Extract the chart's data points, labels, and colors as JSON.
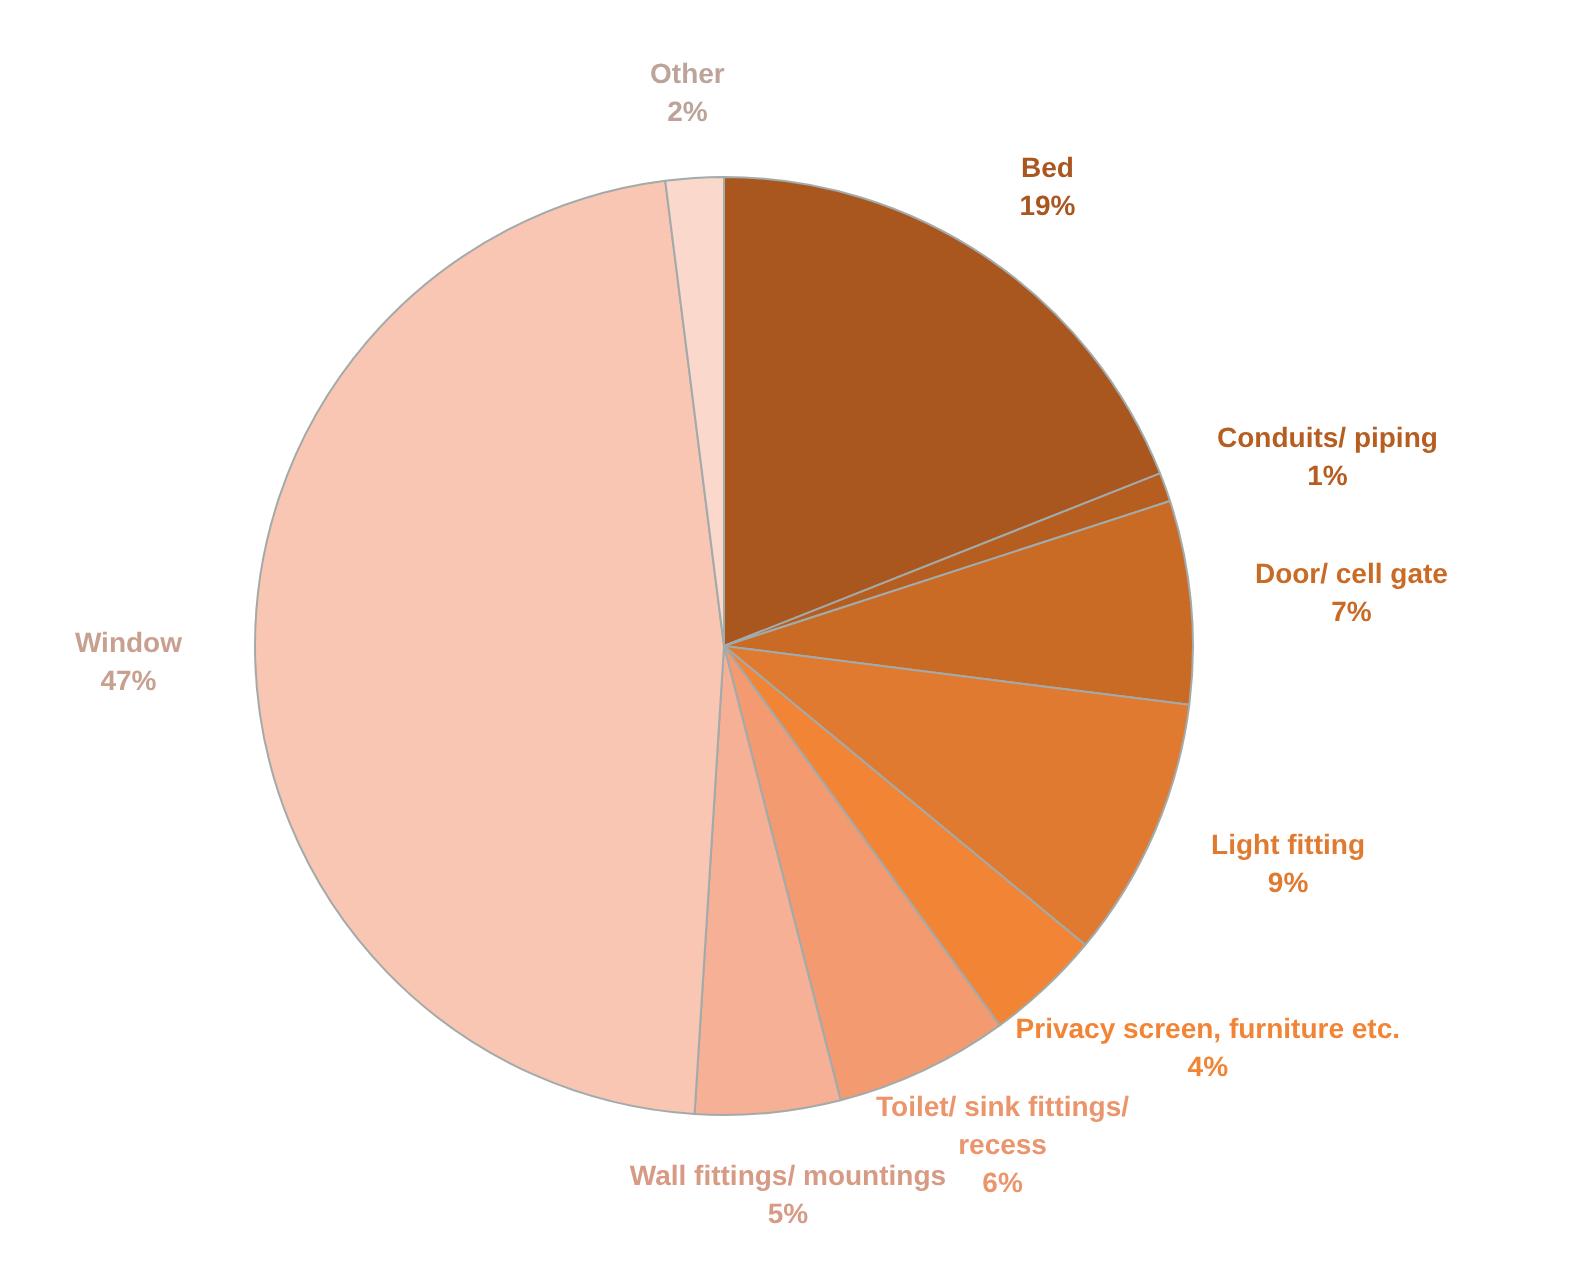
{
  "chart_data": {
    "type": "pie",
    "categories": [
      "Bed",
      "Conduits/ piping",
      "Door/ cell gate",
      "Light fitting",
      "Privacy screen, furniture etc.",
      "Toilet/ sink fittings/ recess",
      "Wall fittings/ mountings",
      "Window",
      "Other"
    ],
    "values": [
      19,
      1,
      7,
      9,
      4,
      6,
      5,
      47,
      2
    ],
    "value_labels": [
      "19%",
      "1%",
      "7%",
      "9%",
      "4%",
      "6%",
      "5%",
      "47%",
      "2%"
    ],
    "colors": [
      "#a9561f",
      "#b65d20",
      "#c96a25",
      "#e07a30",
      "#f28436",
      "#f39a70",
      "#f5b096",
      "#f8c6b2",
      "#fad9cc"
    ]
  }
}
